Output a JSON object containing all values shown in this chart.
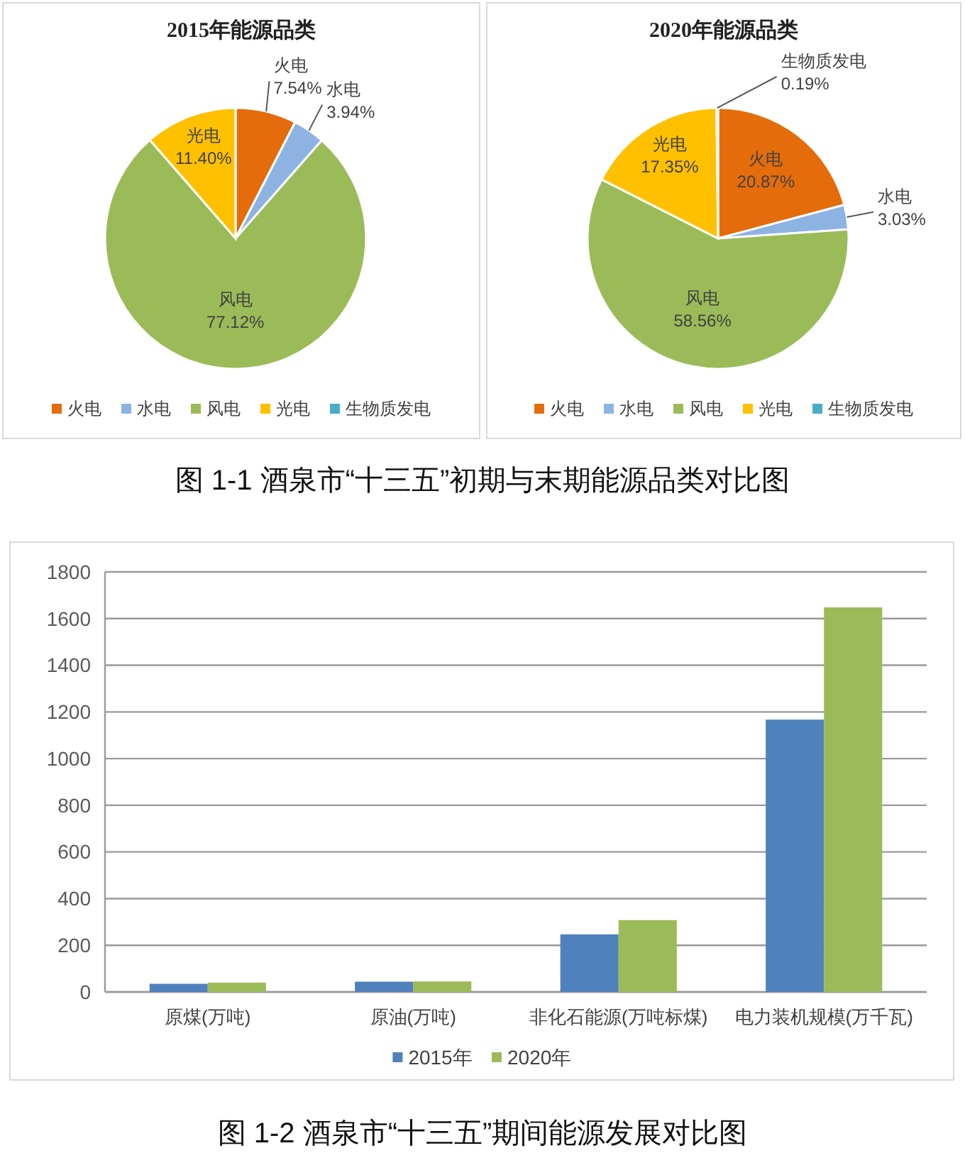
{
  "chart_data": [
    {
      "type": "pie",
      "title": "2015年能源品类",
      "categories": [
        "火电",
        "水电",
        "风电",
        "光电",
        "生物质发电"
      ],
      "values": [
        7.54,
        3.94,
        77.12,
        11.4,
        null
      ],
      "colors": [
        "#e46c0a",
        "#8db3e2",
        "#9bbb59",
        "#ffc000",
        "#4bacc6"
      ],
      "value_labels": [
        "7.54%",
        "3.94%",
        "77.12%",
        "11.40%",
        null
      ],
      "legend": "bottom",
      "annotations": [
        "图 1-1 酒泉市“十三五”初期与末期能源品类对比图"
      ]
    },
    {
      "type": "pie",
      "title": "2020年能源品类",
      "categories": [
        "火电",
        "水电",
        "风电",
        "光电",
        "生物质发电"
      ],
      "values": [
        20.87,
        3.03,
        58.56,
        17.35,
        0.19
      ],
      "colors": [
        "#e46c0a",
        "#8db3e2",
        "#9bbb59",
        "#ffc000",
        "#4bacc6"
      ],
      "value_labels": [
        "20.87%",
        "3.03%",
        "58.56%",
        "17.35%",
        "0.19%"
      ],
      "legend": "bottom"
    },
    {
      "type": "bar",
      "categories": [
        "原煤(万吨)",
        "原油(万吨)",
        "非化石能源(万吨标煤)",
        "电力装机规模(万千瓦)"
      ],
      "series": [
        {
          "name": "2015年",
          "color": "#4f81bd",
          "values": [
            35,
            44,
            247,
            1167
          ]
        },
        {
          "name": "2020年",
          "color": "#9bbb59",
          "values": [
            40,
            45,
            308,
            1648
          ]
        }
      ],
      "ylim": [
        0,
        1800
      ],
      "yticks": [
        0,
        200,
        400,
        600,
        800,
        1000,
        1200,
        1400,
        1600,
        1800
      ],
      "grid": "y",
      "legend": "bottom",
      "annotations": [
        "图 1-2 酒泉市“十三五”期间能源发展对比图"
      ]
    }
  ]
}
